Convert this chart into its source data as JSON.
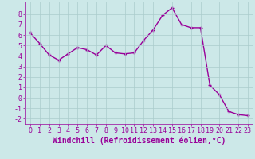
{
  "x": [
    0,
    1,
    2,
    3,
    4,
    5,
    6,
    7,
    8,
    9,
    10,
    11,
    12,
    13,
    14,
    15,
    16,
    17,
    18,
    19,
    20,
    21,
    22,
    23
  ],
  "y": [
    6.2,
    5.2,
    4.1,
    3.6,
    4.2,
    4.8,
    4.6,
    4.1,
    5.0,
    4.3,
    4.2,
    4.3,
    5.5,
    6.5,
    7.9,
    8.6,
    7.0,
    6.7,
    6.7,
    1.2,
    0.3,
    -1.3,
    -1.6,
    -1.7
  ],
  "line_color": "#990099",
  "marker": "+",
  "bg_color": "#cce8e8",
  "grid_color": "#aacccc",
  "xlabel": "Windchill (Refroidissement éolien,°C)",
  "xlim": [
    -0.5,
    23.5
  ],
  "ylim": [
    -2.5,
    9.2
  ],
  "yticks": [
    -2,
    -1,
    0,
    1,
    2,
    3,
    4,
    5,
    6,
    7,
    8
  ],
  "xticks": [
    0,
    1,
    2,
    3,
    4,
    5,
    6,
    7,
    8,
    9,
    10,
    11,
    12,
    13,
    14,
    15,
    16,
    17,
    18,
    19,
    20,
    21,
    22,
    23
  ],
  "font_color": "#990099",
  "font_size": 6,
  "linewidth": 1.0,
  "markersize": 3.0
}
